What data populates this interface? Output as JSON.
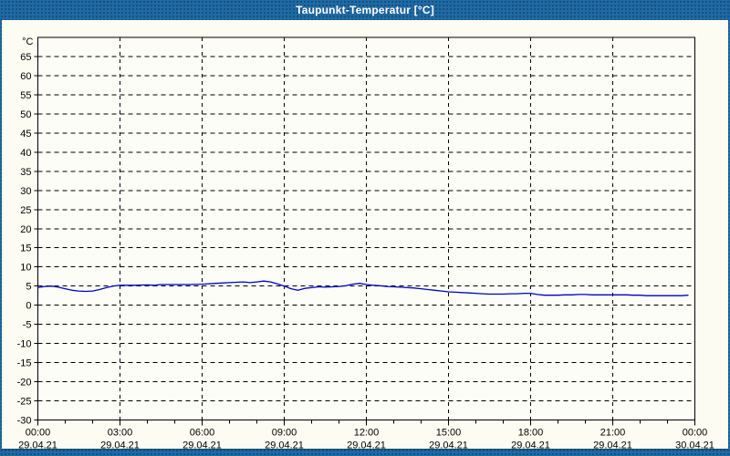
{
  "window": {
    "title": "Taupunkt-Temperatur [°C]"
  },
  "colors": {
    "frame": "#1F6AA5",
    "frame_dot": "#0A2A4A",
    "content_background": "#FCFCF2",
    "plot_fill": "#FDFDF8",
    "plot_border": "#000000",
    "grid": "#000000",
    "text": "#000000",
    "line": "#0000C8"
  },
  "chart_data": {
    "type": "line",
    "title": "Taupunkt-Temperatur [°C]",
    "xlabel": "",
    "ylabel": "°C",
    "ylim": [
      -30,
      70
    ],
    "xlim": [
      0,
      24
    ],
    "grid": "dashed",
    "legend": "none",
    "yticks": [
      65,
      60,
      55,
      50,
      45,
      40,
      35,
      30,
      25,
      20,
      15,
      10,
      5,
      0,
      -5,
      -10,
      -15,
      -20,
      -25,
      -30
    ],
    "minor_xtick_interval_hours": 1,
    "xticks": [
      {
        "h": 0,
        "time": "00:00",
        "date": "29.04.21"
      },
      {
        "h": 3,
        "time": "03:00",
        "date": "29.04.21"
      },
      {
        "h": 6,
        "time": "06:00",
        "date": "29.04.21"
      },
      {
        "h": 9,
        "time": "09:00",
        "date": "29.04.21"
      },
      {
        "h": 12,
        "time": "12:00",
        "date": "29.04.21"
      },
      {
        "h": 15,
        "time": "15:00",
        "date": "29.04.21"
      },
      {
        "h": 18,
        "time": "18:00",
        "date": "29.04.21"
      },
      {
        "h": 21,
        "time": "21:00",
        "date": "29.04.21"
      },
      {
        "h": 24,
        "time": "00:00",
        "date": "30.04.21"
      }
    ],
    "series": [
      {
        "name": "Taupunkt-Temperatur",
        "color": "#0000C8",
        "points": [
          [
            0.0,
            4.6
          ],
          [
            0.25,
            4.9
          ],
          [
            0.5,
            5.0
          ],
          [
            0.75,
            4.7
          ],
          [
            1.0,
            4.3
          ],
          [
            1.25,
            3.9
          ],
          [
            1.5,
            3.7
          ],
          [
            1.75,
            3.6
          ],
          [
            2.0,
            3.7
          ],
          [
            2.25,
            4.1
          ],
          [
            2.5,
            4.6
          ],
          [
            2.75,
            5.0
          ],
          [
            3.0,
            5.2
          ],
          [
            3.5,
            5.2
          ],
          [
            4.0,
            5.3
          ],
          [
            4.25,
            5.2
          ],
          [
            4.5,
            5.4
          ],
          [
            5.0,
            5.4
          ],
          [
            5.5,
            5.4
          ],
          [
            6.0,
            5.5
          ],
          [
            6.5,
            5.7
          ],
          [
            6.75,
            5.8
          ],
          [
            7.0,
            5.9
          ],
          [
            7.25,
            6.0
          ],
          [
            7.5,
            6.1
          ],
          [
            7.75,
            5.9
          ],
          [
            8.0,
            6.1
          ],
          [
            8.25,
            6.3
          ],
          [
            8.5,
            6.1
          ],
          [
            8.75,
            5.6
          ],
          [
            9.0,
            5.0
          ],
          [
            9.25,
            4.3
          ],
          [
            9.5,
            3.9
          ],
          [
            9.75,
            4.4
          ],
          [
            10.0,
            4.6
          ],
          [
            10.25,
            4.8
          ],
          [
            10.5,
            4.7
          ],
          [
            10.75,
            4.8
          ],
          [
            11.0,
            4.9
          ],
          [
            11.25,
            5.1
          ],
          [
            11.5,
            5.5
          ],
          [
            11.75,
            5.7
          ],
          [
            12.0,
            5.4
          ],
          [
            12.25,
            5.2
          ],
          [
            12.5,
            5.1
          ],
          [
            12.75,
            4.9
          ],
          [
            13.0,
            4.8
          ],
          [
            13.25,
            4.7
          ],
          [
            13.5,
            4.6
          ],
          [
            13.75,
            4.5
          ],
          [
            14.0,
            4.3
          ],
          [
            14.25,
            4.1
          ],
          [
            14.5,
            3.9
          ],
          [
            14.75,
            3.7
          ],
          [
            15.0,
            3.5
          ],
          [
            15.25,
            3.4
          ],
          [
            15.5,
            3.3
          ],
          [
            15.75,
            3.2
          ],
          [
            16.0,
            3.1
          ],
          [
            16.25,
            3.0
          ],
          [
            16.5,
            2.9
          ],
          [
            17.0,
            2.9
          ],
          [
            17.25,
            3.0
          ],
          [
            17.5,
            3.0
          ],
          [
            17.75,
            3.1
          ],
          [
            18.0,
            3.1
          ],
          [
            18.25,
            2.8
          ],
          [
            18.5,
            2.6
          ],
          [
            19.0,
            2.6
          ],
          [
            19.25,
            2.7
          ],
          [
            19.5,
            2.7
          ],
          [
            19.75,
            2.8
          ],
          [
            20.0,
            2.8
          ],
          [
            20.25,
            2.7
          ],
          [
            20.5,
            2.7
          ],
          [
            21.0,
            2.7
          ],
          [
            21.5,
            2.7
          ],
          [
            21.75,
            2.6
          ],
          [
            22.0,
            2.6
          ],
          [
            22.25,
            2.5
          ],
          [
            22.5,
            2.5
          ],
          [
            23.0,
            2.5
          ],
          [
            23.25,
            2.5
          ],
          [
            23.5,
            2.5
          ],
          [
            23.75,
            2.6
          ]
        ]
      }
    ]
  }
}
